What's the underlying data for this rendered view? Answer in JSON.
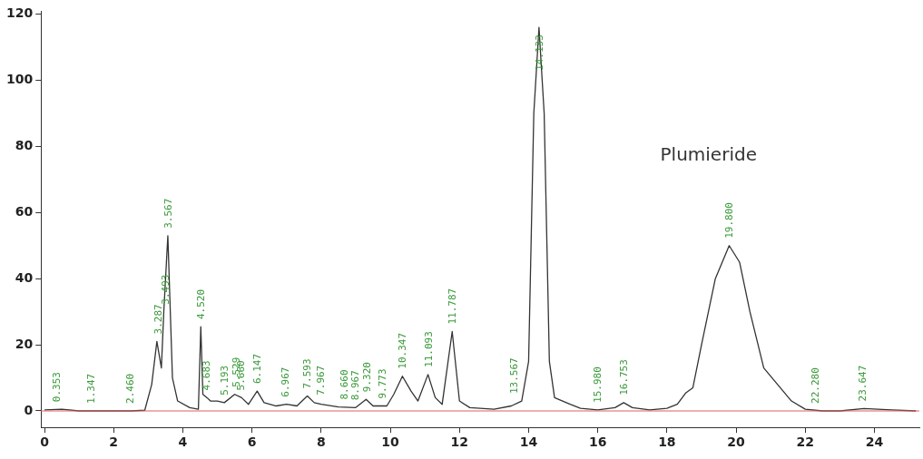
{
  "chart_data": {
    "type": "line",
    "x": [
      0,
      0.5,
      1.0,
      2.5,
      2.9,
      3.1,
      3.25,
      3.38,
      3.45,
      3.567,
      3.7,
      3.85,
      4.2,
      4.45,
      4.52,
      4.58,
      4.7,
      4.8,
      5.0,
      5.2,
      5.5,
      5.7,
      5.9,
      6.15,
      6.35,
      6.7,
      7.0,
      7.3,
      7.6,
      7.8,
      8.0,
      8.5,
      9.0,
      9.3,
      9.5,
      9.9,
      10.1,
      10.35,
      10.6,
      10.8,
      11.09,
      11.3,
      11.5,
      11.79,
      12.0,
      12.3,
      13.0,
      13.5,
      13.8,
      14.0,
      14.15,
      14.3,
      14.45,
      14.6,
      14.75,
      15.2,
      15.5,
      16.0,
      16.5,
      16.75,
      17.0,
      17.5,
      18.0,
      18.3,
      18.55,
      18.75,
      19.0,
      19.4,
      19.8,
      20.1,
      20.4,
      20.8,
      21.2,
      21.6,
      22.0,
      22.5,
      23.0,
      23.7,
      24.5,
      25.2
    ],
    "series": [
      {
        "color": "#333333",
        "values": [
          0.3,
          0.5,
          0,
          0,
          0.2,
          8,
          21,
          13,
          30,
          53,
          10,
          3,
          1,
          0.5,
          25.5,
          5,
          4,
          3,
          3,
          2.5,
          5,
          4,
          2,
          6,
          2.5,
          1.5,
          2,
          1.5,
          4.5,
          2.5,
          2,
          1.2,
          1,
          3.5,
          1.5,
          1.5,
          5,
          10.5,
          6,
          3,
          11,
          4,
          2,
          24,
          3,
          1,
          0.5,
          1.5,
          3,
          15,
          90,
          116,
          90,
          15,
          4,
          2,
          0.8,
          0.3,
          1,
          2.5,
          1,
          0.3,
          0.8,
          2,
          5.5,
          7,
          20,
          40,
          50,
          45,
          30,
          13,
          8,
          3,
          0.5,
          0,
          0,
          0.7,
          0.3,
          0
        ]
      }
    ],
    "xlim": [
      -0.1,
      25.3
    ],
    "xticks": [
      0,
      2,
      4,
      6,
      8,
      10,
      12,
      14,
      16,
      18,
      20,
      22,
      24
    ],
    "ylim": [
      -5,
      121
    ],
    "yticks": [
      0,
      20,
      40,
      60,
      80,
      100,
      120
    ],
    "grid": false,
    "legend": false,
    "marker": "none",
    "line_style": "solid",
    "ref_lines": [
      {
        "axis": "y",
        "value": 0,
        "color": "#e06060"
      }
    ],
    "annotations": [
      {
        "text": "0.353",
        "x": 0.353,
        "y": 0.5
      },
      {
        "text": "1.347",
        "x": 1.347,
        "y": 0
      },
      {
        "text": "2.460",
        "x": 2.46,
        "y": 0
      },
      {
        "text": "3.287",
        "x": 3.287,
        "y": 21
      },
      {
        "text": "3.493",
        "x": 3.493,
        "y": 30
      },
      {
        "text": "3.567",
        "x": 3.567,
        "y": 53
      },
      {
        "text": "4.520",
        "x": 4.52,
        "y": 25.5
      },
      {
        "text": "4.683",
        "x": 4.683,
        "y": 4
      },
      {
        "text": "5.193",
        "x": 5.193,
        "y": 2.5
      },
      {
        "text": "5.529",
        "x": 5.529,
        "y": 5
      },
      {
        "text": "5.660",
        "x": 5.66,
        "y": 4
      },
      {
        "text": "6.147",
        "x": 6.147,
        "y": 6
      },
      {
        "text": "6.967",
        "x": 6.967,
        "y": 2
      },
      {
        "text": "7.593",
        "x": 7.593,
        "y": 4.5
      },
      {
        "text": "7.967",
        "x": 7.967,
        "y": 2.5
      },
      {
        "text": "8.660",
        "x": 8.66,
        "y": 1.2
      },
      {
        "text": "8.967",
        "x": 8.967,
        "y": 1
      },
      {
        "text": "9.320",
        "x": 9.32,
        "y": 3.5
      },
      {
        "text": "9.773",
        "x": 9.773,
        "y": 1.5
      },
      {
        "text": "10.347",
        "x": 10.347,
        "y": 10.5
      },
      {
        "text": "11.093",
        "x": 11.093,
        "y": 11
      },
      {
        "text": "11.787",
        "x": 11.787,
        "y": 24
      },
      {
        "text": "13.567",
        "x": 13.567,
        "y": 3
      },
      {
        "text": "14.133",
        "x": 14.3,
        "y": 116
      },
      {
        "text": "15.980",
        "x": 15.98,
        "y": 0.3
      },
      {
        "text": "16.753",
        "x": 16.753,
        "y": 2.5
      },
      {
        "text": "19.800",
        "x": 19.8,
        "y": 50
      },
      {
        "text": "22.280",
        "x": 22.28,
        "y": 0
      },
      {
        "text": "23.647",
        "x": 23.647,
        "y": 0.7
      },
      "Plumieride"
    ]
  }
}
